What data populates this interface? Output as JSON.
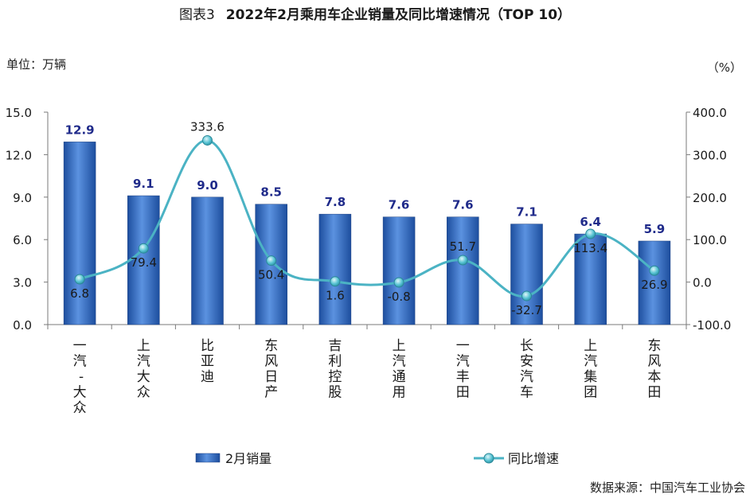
{
  "header": {
    "figure_label": "图表3",
    "title": "2022年2月乘用车企业销量及同比增速情况（TOP 10）",
    "unit_left": "单位：万辆",
    "unit_right": "（%）",
    "source": "数据来源：中国汽车工业协会"
  },
  "chart_data": {
    "type": "bar",
    "categories": [
      "一汽-大众",
      "上汽大众",
      "比亚迪",
      "东风日产",
      "吉利控股",
      "上汽通用",
      "一汽丰田",
      "长安汽车",
      "上汽集团",
      "东风本田"
    ],
    "series": [
      {
        "name": "2月销量",
        "type": "bar",
        "axis": "left",
        "values": [
          12.9,
          9.1,
          9.0,
          8.5,
          7.8,
          7.6,
          7.6,
          7.1,
          6.4,
          5.9
        ],
        "color": "#3a6fc4"
      },
      {
        "name": "同比增速",
        "type": "line",
        "axis": "right",
        "values": [
          6.8,
          79.4,
          333.6,
          50.4,
          1.6,
          -0.8,
          51.7,
          -32.7,
          113.4,
          26.9
        ],
        "color": "#4bb3c4"
      }
    ],
    "y_left": {
      "min": 0,
      "max": 15,
      "ticks": [
        "0.0",
        "3.0",
        "6.0",
        "9.0",
        "12.0",
        "15.0"
      ]
    },
    "y_right": {
      "min": -100,
      "max": 400,
      "ticks": [
        "-100.0",
        "0.0",
        "100.0",
        "200.0",
        "300.0",
        "400.0"
      ]
    },
    "bar_label_color": "#1f2a8a",
    "line_label_color": "#1a1a1a",
    "legend_position": "bottom",
    "grid": false
  }
}
